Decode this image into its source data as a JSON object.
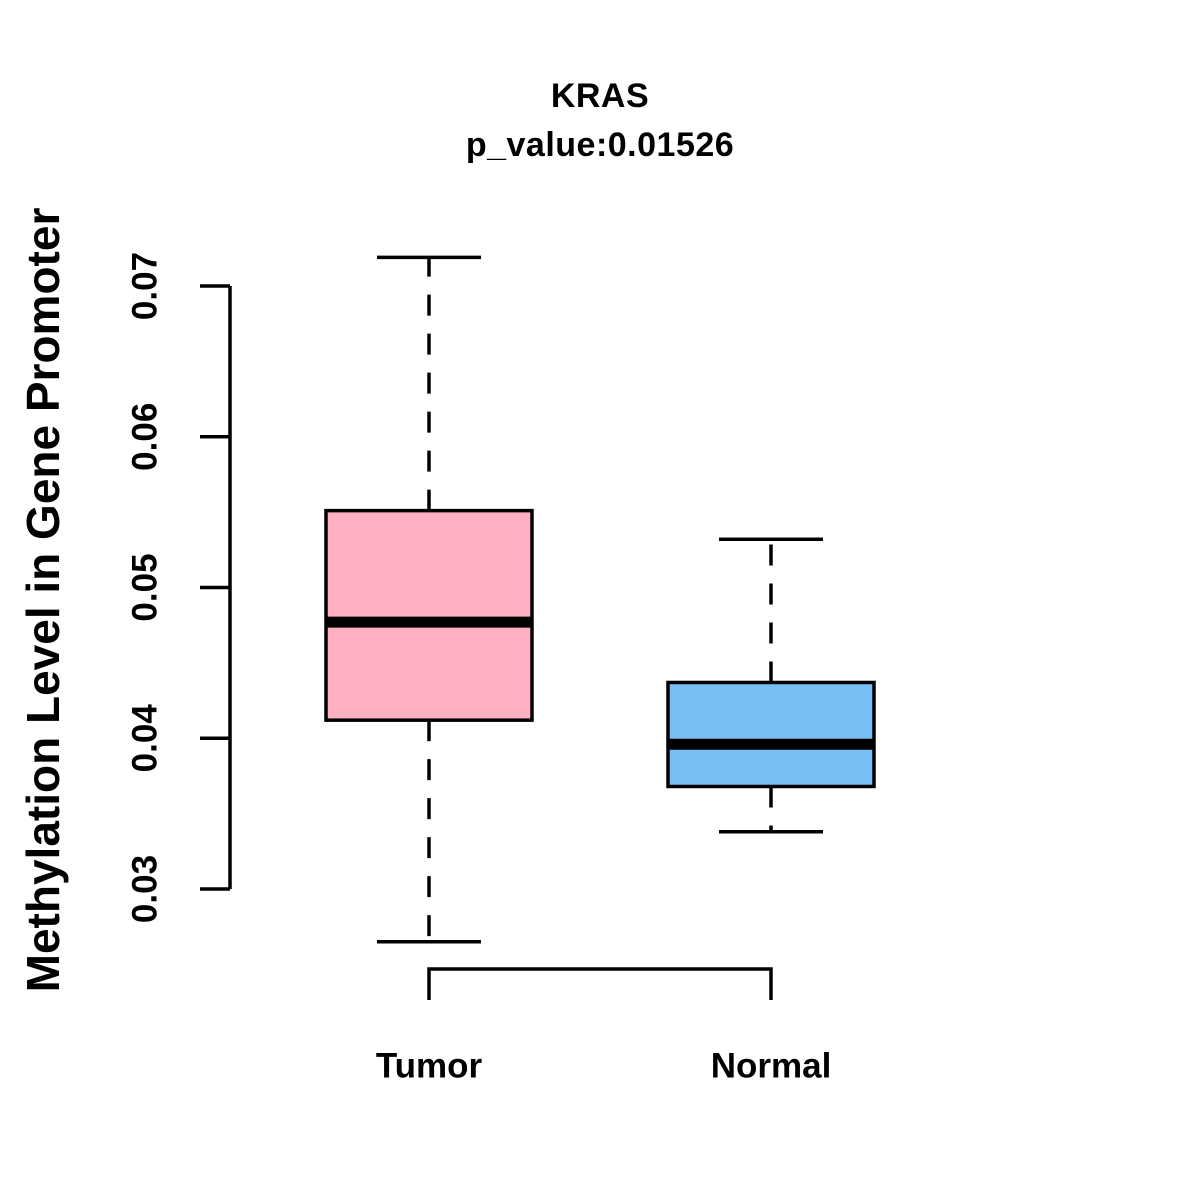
{
  "chart_data": {
    "type": "boxplot",
    "title": "KRAS",
    "subtitle": "p_value:0.01526",
    "gene": "KRAS",
    "p_value": 0.01526,
    "ylabel": "Methylation Level in Gene Promoter",
    "xlabel": "",
    "categories": [
      "Tumor",
      "Normal"
    ],
    "yticks": [
      0.03,
      0.04,
      0.05,
      0.06,
      0.07
    ],
    "ytick_labels": [
      "0.03",
      "0.04",
      "0.05",
      "0.06",
      "0.07"
    ],
    "ylim": [
      0.03,
      0.07
    ],
    "grid": "off",
    "legend": "none",
    "whisker_style": "dashed",
    "series": [
      {
        "name": "Tumor",
        "color": "#FFB1C1",
        "lower_whisker": 0.0265,
        "q1": 0.0412,
        "median": 0.0477,
        "q3": 0.0551,
        "upper_whisker": 0.0719
      },
      {
        "name": "Normal",
        "color": "#77BEF5",
        "lower_whisker": 0.0338,
        "q1": 0.0368,
        "median": 0.0396,
        "q3": 0.0437,
        "upper_whisker": 0.0532
      }
    ],
    "colors": {
      "stroke": "#000000",
      "background": "#ffffff"
    }
  }
}
